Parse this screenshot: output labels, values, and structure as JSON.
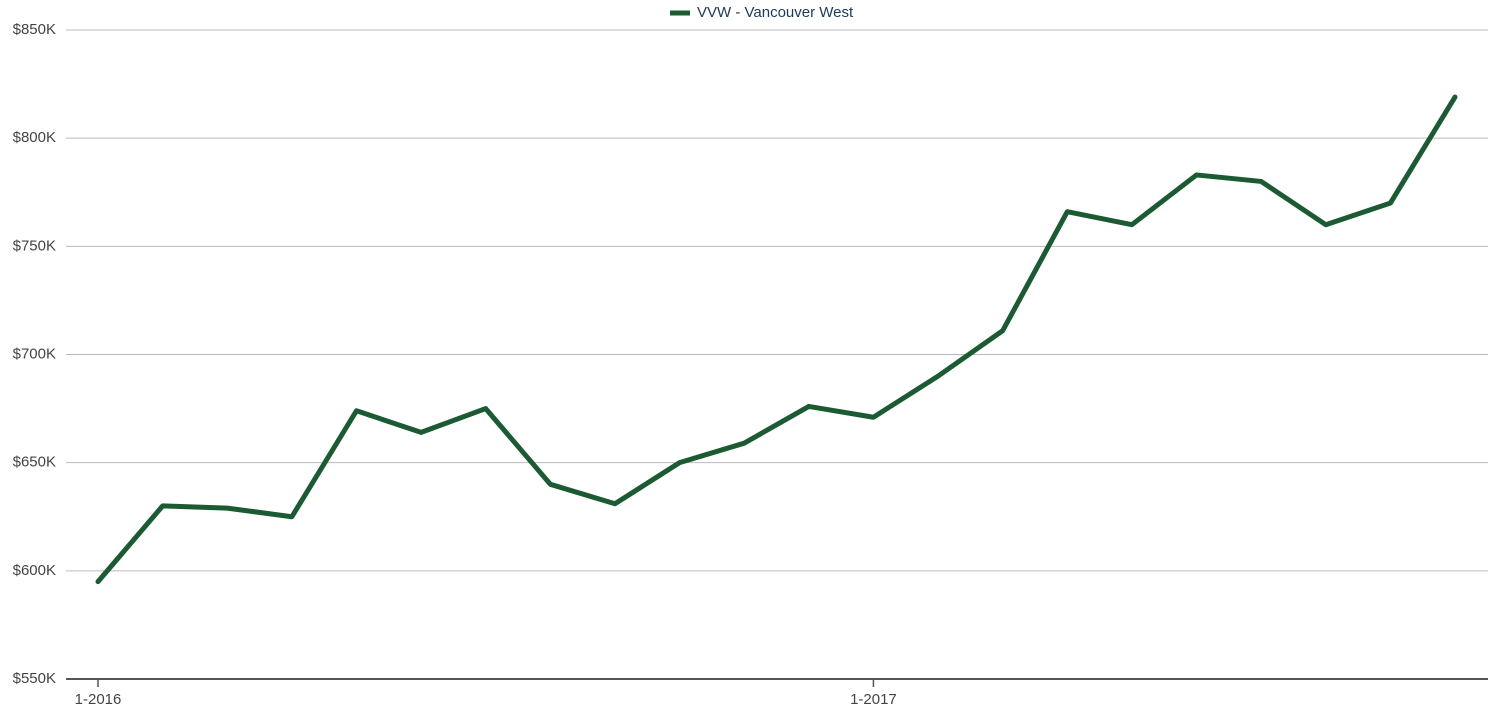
{
  "chart_data": {
    "type": "line",
    "categories": [
      "1-2016",
      null,
      null,
      null,
      null,
      null,
      null,
      null,
      null,
      null,
      null,
      null,
      "1-2017",
      null,
      null,
      null,
      null,
      null,
      null,
      null,
      null,
      null
    ],
    "series": [
      {
        "name": "VVW - Vancouver West",
        "color": "#1b5a32",
        "values": [
          595000,
          630000,
          629000,
          625000,
          674000,
          664000,
          675000,
          640000,
          631000,
          650000,
          659000,
          676000,
          671000,
          690000,
          711000,
          766000,
          760000,
          783000,
          780000,
          760000,
          770000,
          819000
        ]
      }
    ],
    "ylim": [
      550000,
      850000
    ],
    "yticks": [
      {
        "value": 550000,
        "label": "$550K"
      },
      {
        "value": 600000,
        "label": "$600K"
      },
      {
        "value": 650000,
        "label": "$650K"
      },
      {
        "value": 700000,
        "label": "$700K"
      },
      {
        "value": 750000,
        "label": "$750K"
      },
      {
        "value": 800000,
        "label": "$800K"
      },
      {
        "value": 850000,
        "label": "$850K"
      }
    ],
    "grid": true,
    "legend": "top"
  }
}
